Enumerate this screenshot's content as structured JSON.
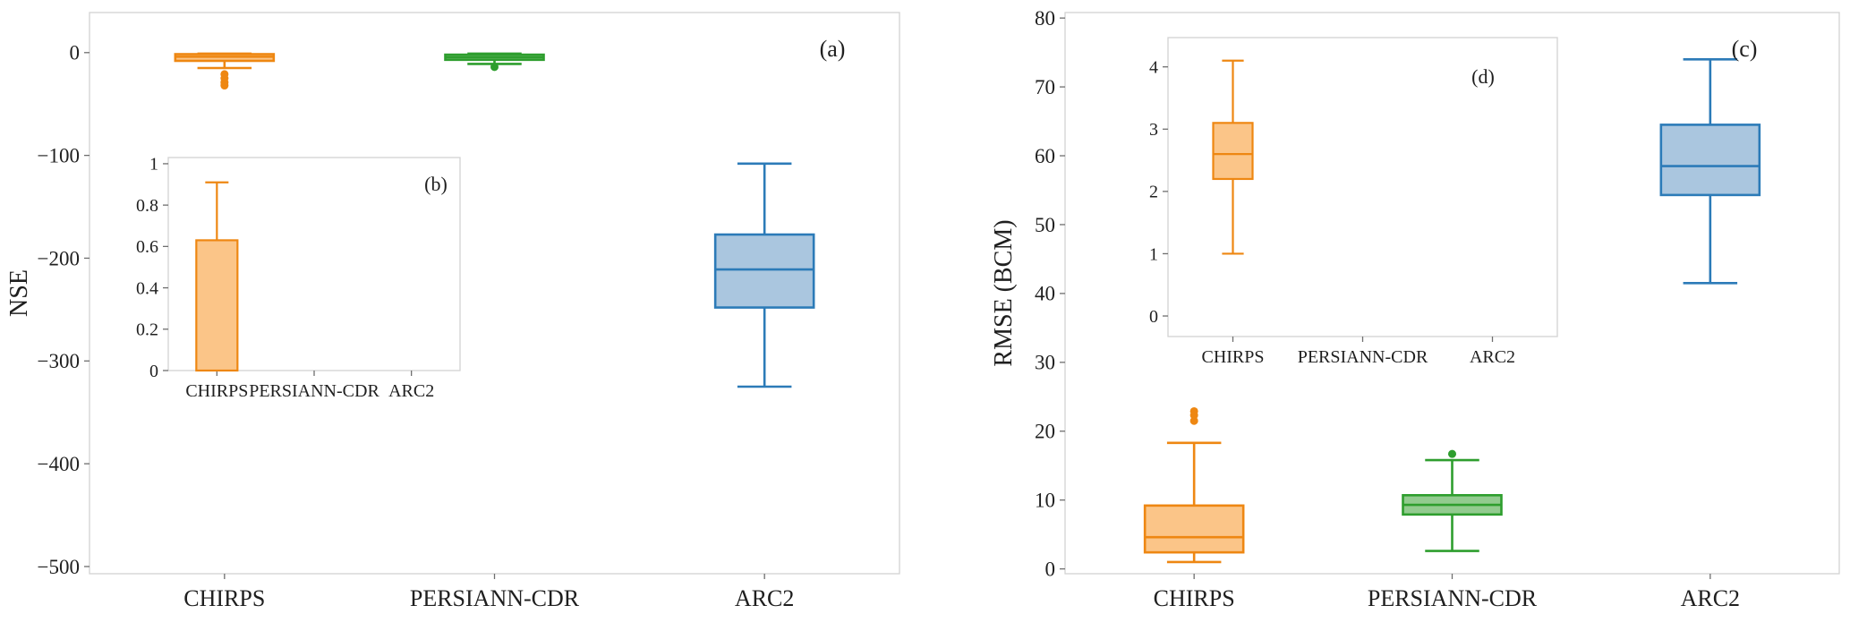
{
  "figure": {
    "background": "#ffffff",
    "description": "Two-panel boxplot figure comparing satellite rainfall products (NSE and RMSE), each with an inset sub-panel"
  },
  "palette": {
    "orange": {
      "fill": "#FBC588",
      "edge": "#EE8712"
    },
    "green": {
      "fill": "#92CB8F",
      "edge": "#2E9E2E"
    },
    "blue": {
      "fill": "#AAC6DF",
      "edge": "#2C7BB8"
    }
  },
  "chart_data": [
    {
      "id": "a",
      "type": "box",
      "corner_label": "(a)",
      "title": "",
      "xlabel": "",
      "ylabel": "NSE",
      "ylim": [
        -507,
        39
      ],
      "grid": false,
      "legend": "none",
      "yticks": [
        {
          "v": 0,
          "label": "0"
        },
        {
          "v": -100,
          "label": "−100"
        },
        {
          "v": -200,
          "label": "−200"
        },
        {
          "v": -300,
          "label": "−300"
        },
        {
          "v": -400,
          "label": "−400"
        },
        {
          "v": -500,
          "label": "−500"
        }
      ],
      "categories": [
        "CHIRPS",
        "PERSIANN-CDR",
        "ARC2"
      ],
      "series": [
        {
          "category": "CHIRPS",
          "color": "orange",
          "stats": {
            "whisker_low": -15,
            "q1": -8,
            "median": -4,
            "q3": -1.5,
            "whisker_high": -1,
            "outliers": [
              -21,
              -25,
              -29,
              -32
            ]
          }
        },
        {
          "category": "PERSIANN-CDR",
          "color": "green",
          "stats": {
            "whisker_low": -11,
            "q1": -7,
            "median": -4.5,
            "q3": -2,
            "whisker_high": -1,
            "outliers": [
              -14
            ]
          }
        },
        {
          "category": "ARC2",
          "color": "blue",
          "stats": {
            "whisker_low": -325,
            "q1": -248,
            "median": -211,
            "q3": -177,
            "whisker_high": -108,
            "outliers": []
          }
        }
      ]
    },
    {
      "id": "b",
      "type": "bar",
      "corner_label": "(b)",
      "title": "",
      "xlabel": "",
      "ylabel": "",
      "ylim": [
        0,
        1.03
      ],
      "grid": false,
      "legend": "none",
      "yticks": [
        {
          "v": 1,
          "label": "1"
        },
        {
          "v": 0.8,
          "label": "0.8"
        },
        {
          "v": 0.6,
          "label": "0.6"
        },
        {
          "v": 0.4,
          "label": "0.4"
        },
        {
          "v": 0.2,
          "label": "0.2"
        },
        {
          "v": 0,
          "label": "0"
        }
      ],
      "categories": [
        "CHIRPS",
        "PERSIANN-CDR",
        "ARC2"
      ],
      "series": [
        {
          "category": "CHIRPS",
          "color": "orange",
          "value": 0.63,
          "error_high": 0.91
        },
        {
          "category": "PERSIANN-CDR",
          "color": "green",
          "value": 0,
          "error_high": null
        },
        {
          "category": "ARC2",
          "color": "blue",
          "value": 0,
          "error_high": null
        }
      ]
    },
    {
      "id": "c",
      "type": "box",
      "corner_label": "(c)",
      "title": "",
      "xlabel": "",
      "ylabel": "RMSE (BCM)",
      "ylim": [
        -0.7,
        80.8
      ],
      "grid": false,
      "legend": "none",
      "yticks": [
        {
          "v": 80,
          "label": "80"
        },
        {
          "v": 70,
          "label": "70"
        },
        {
          "v": 60,
          "label": "60"
        },
        {
          "v": 50,
          "label": "50"
        },
        {
          "v": 40,
          "label": "40"
        },
        {
          "v": 30,
          "label": "30"
        },
        {
          "v": 20,
          "label": "20"
        },
        {
          "v": 10,
          "label": "10"
        },
        {
          "v": 0,
          "label": "0"
        }
      ],
      "categories": [
        "CHIRPS",
        "PERSIANN-CDR",
        "ARC2"
      ],
      "series": [
        {
          "category": "CHIRPS",
          "color": "orange",
          "stats": {
            "whisker_low": 1,
            "q1": 2.4,
            "median": 4.6,
            "q3": 9.2,
            "whisker_high": 18.3,
            "outliers": [
              21.5,
              22.3,
              22.9
            ]
          }
        },
        {
          "category": "PERSIANN-CDR",
          "color": "green",
          "stats": {
            "whisker_low": 2.6,
            "q1": 7.9,
            "median": 9.3,
            "q3": 10.7,
            "whisker_high": 15.8,
            "outliers": [
              16.7
            ]
          }
        },
        {
          "category": "ARC2",
          "color": "blue",
          "stats": {
            "whisker_low": 41.5,
            "q1": 54.3,
            "median": 58.5,
            "q3": 64.5,
            "whisker_high": 74,
            "outliers": []
          }
        }
      ]
    },
    {
      "id": "d",
      "type": "box",
      "corner_label": "(d)",
      "title": "",
      "xlabel": "",
      "ylabel": "",
      "ylim": [
        -0.33,
        4.47
      ],
      "grid": false,
      "legend": "none",
      "yticks": [
        {
          "v": 4,
          "label": "4"
        },
        {
          "v": 3,
          "label": "3"
        },
        {
          "v": 2,
          "label": "2"
        },
        {
          "v": 1,
          "label": "1"
        },
        {
          "v": 0,
          "label": "0"
        }
      ],
      "categories": [
        "CHIRPS",
        "PERSIANN-CDR",
        "ARC2"
      ],
      "series": [
        {
          "category": "CHIRPS",
          "color": "orange",
          "stats": {
            "whisker_low": 1.0,
            "q1": 2.2,
            "median": 2.6,
            "q3": 3.1,
            "whisker_high": 4.1,
            "outliers": []
          }
        },
        {
          "category": "PERSIANN-CDR",
          "color": "green",
          "stats": null
        },
        {
          "category": "ARC2",
          "color": "blue",
          "stats": null
        }
      ]
    }
  ]
}
